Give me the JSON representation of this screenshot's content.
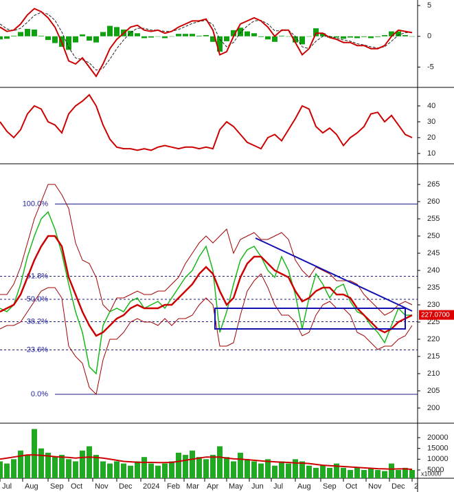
{
  "chart_data": [
    {
      "type": "line",
      "ylim": [
        -8.3,
        5.9
      ],
      "yticks": [
        5,
        0,
        -5
      ],
      "xlim": [
        0,
        60.8
      ],
      "series": [
        {
          "mark": "bar",
          "color": "#11a011",
          "values": [
            -0.5,
            -0.4,
            0.1,
            0.7,
            1.2,
            1.1,
            0.1,
            -0.6,
            -1.1,
            -1.7,
            -2.2,
            -1.0,
            0.3,
            -0.7,
            -1.0,
            0.7,
            1.7,
            1.5,
            1.1,
            0.9,
            0.5,
            -0.3,
            -0.2,
            0,
            -0.3,
            0,
            0.4,
            0.4,
            0.4,
            0.1,
            0.2,
            -0.9,
            -2.5,
            -0.8,
            1.0,
            1.4,
            0.8,
            0.5,
            -0.1,
            -0.5,
            -0.9,
            0.1,
            0,
            -1.0,
            -1.3,
            0,
            1.3,
            0.5,
            -0.2,
            -0.2,
            -0.4,
            -0.2,
            -0.3,
            -0.1,
            -0.3,
            -0.1,
            0.2,
            0.8,
            0.8,
            0.2,
            0
          ]
        },
        {
          "mark": "line",
          "color": "#222222",
          "dash": true,
          "values": [
            2.0,
            1.2,
            0.9,
            1.3,
            2.3,
            3.4,
            3.9,
            3.6,
            2.6,
            0.7,
            -1.8,
            -3.5,
            -3.8,
            -4.3,
            -5.5,
            -5.2,
            -3.7,
            -2.0,
            -0.6,
            0.6,
            1.3,
            1.3,
            1.0,
            1.0,
            0.8,
            0.8,
            1.1,
            1.6,
            2.1,
            2.4,
            2.6,
            1.9,
            -0.5,
            -1.7,
            -1.0,
            0.6,
            1.7,
            2.5,
            2.6,
            2.0,
            0.9,
            0.9,
            1.0,
            0.0,
            -1.7,
            -2.0,
            -0.8,
            0.0,
            0.0,
            -0.3,
            -0.6,
            -0.8,
            -1.2,
            -1.4,
            -1.7,
            -1.9,
            -1.7,
            -0.8,
            0.2,
            0.6,
            0.6
          ]
        },
        {
          "mark": "line",
          "color": "#cc0000",
          "width": 2,
          "values": [
            1.5,
            0.8,
            1.0,
            2.0,
            3.5,
            4.5,
            4.0,
            3.0,
            1.5,
            -1.0,
            -4.0,
            -4.5,
            -3.5,
            -5.0,
            -6.5,
            -4.5,
            -2.0,
            -0.5,
            0.5,
            1.5,
            1.8,
            1.0,
            0.8,
            1.0,
            0.5,
            0.8,
            1.5,
            2.0,
            2.5,
            2.5,
            2.8,
            1.0,
            -3.0,
            -2.5,
            0.0,
            2.0,
            2.5,
            3.0,
            2.5,
            1.5,
            0.0,
            1.0,
            1.0,
            -1.0,
            -3.0,
            -2.0,
            0.5,
            0.5,
            -0.2,
            -0.5,
            -1.0,
            -1.0,
            -1.5,
            -1.5,
            -2.0,
            -2.0,
            -1.5,
            0.0,
            1.0,
            0.8,
            0.6
          ]
        }
      ]
    },
    {
      "type": "line",
      "ylim": [
        3.5,
        51.7
      ],
      "yticks": [
        40,
        30,
        20,
        10
      ],
      "xlim": [
        0,
        60.8
      ],
      "series": [
        {
          "mark": "line",
          "color": "#cc0000",
          "width": 2,
          "values": [
            30,
            24,
            20,
            25,
            35,
            40,
            38,
            30,
            28,
            23,
            35,
            40,
            43,
            47,
            40,
            28,
            19,
            14,
            13,
            13,
            12,
            13,
            12,
            14,
            15,
            14,
            13,
            14,
            14,
            13,
            14,
            13,
            25,
            30,
            27,
            22,
            17,
            15,
            13,
            20,
            22,
            18,
            25,
            32,
            40,
            38,
            27,
            23,
            26,
            22,
            15,
            20,
            23,
            27,
            35,
            36,
            30,
            34,
            28,
            22,
            20
          ]
        }
      ]
    },
    {
      "type": "line",
      "ylim": [
        195.6,
        271
      ],
      "yticks": [
        265,
        260,
        255,
        250,
        245,
        240,
        235,
        230,
        225,
        220,
        215,
        210,
        205,
        200
      ],
      "xlim": [
        0,
        60.8
      ],
      "series": [
        {
          "mark": "line",
          "color": "#a00000",
          "width": 1,
          "values": [
            233,
            233,
            236,
            241,
            248,
            255,
            260,
            265,
            265,
            262,
            258,
            248,
            243,
            242,
            238,
            230,
            228,
            232,
            232,
            233,
            234,
            233,
            233,
            234,
            234,
            236,
            238,
            242,
            245,
            248,
            250,
            248,
            250,
            252,
            245,
            249,
            250,
            251,
            249,
            249,
            250,
            251,
            249,
            243,
            240,
            238,
            241,
            240,
            239,
            237,
            237,
            237,
            236,
            233,
            231,
            229,
            227,
            228,
            230,
            231,
            230
          ]
        },
        {
          "mark": "line",
          "color": "#a00000",
          "width": 1,
          "values": [
            223,
            224,
            224,
            225,
            228,
            231,
            234,
            235,
            235,
            232,
            218,
            215,
            213,
            206,
            204,
            214,
            220,
            220,
            222,
            225,
            226,
            225,
            225,
            224,
            226,
            224,
            226,
            226,
            227,
            230,
            232,
            230,
            218,
            218,
            219,
            227,
            234,
            237,
            239,
            235,
            230,
            227,
            227,
            225,
            221,
            222,
            227,
            230,
            231,
            229,
            229,
            227,
            222,
            221,
            219,
            217,
            218,
            218,
            220,
            221,
            224
          ]
        },
        {
          "mark": "line",
          "color": "#18b818",
          "width": 1.5,
          "values": [
            229,
            228,
            230,
            236,
            244,
            250,
            255,
            257,
            252,
            245,
            236,
            228,
            222,
            212,
            210,
            224,
            228,
            229,
            228,
            231,
            232,
            229,
            230,
            231,
            229,
            232,
            235,
            238,
            240,
            244,
            247,
            240,
            222,
            228,
            236,
            243,
            246,
            247,
            244,
            240,
            238,
            244,
            240,
            233,
            223,
            232,
            239,
            236,
            232,
            235,
            236,
            231,
            228,
            227,
            224,
            222,
            219,
            224,
            229,
            227,
            227
          ]
        },
        {
          "mark": "line",
          "color": "#cc0000",
          "width": 2.5,
          "values": [
            228,
            229,
            230,
            233,
            238,
            243,
            247,
            250,
            250,
            247,
            238,
            233,
            228,
            224,
            221,
            222,
            224,
            226,
            227,
            229,
            230,
            229,
            229,
            229,
            230,
            230,
            232,
            234,
            236,
            239,
            241,
            239,
            234,
            230,
            232,
            238,
            242,
            244,
            244,
            242,
            240,
            239,
            238,
            234,
            231,
            232,
            234,
            235,
            235,
            233,
            233,
            232,
            229,
            227,
            225,
            223,
            222,
            223,
            225,
            226,
            227
          ]
        }
      ],
      "fib_levels": [
        {
          "label": "100.0%",
          "value": 259.3,
          "solid": true
        },
        {
          "label": "61.8%",
          "value": 238.3
        },
        {
          "label": "50.0%",
          "value": 231.6
        },
        {
          "label": "38.2%",
          "value": 225.1
        },
        {
          "label": "23.6%",
          "value": 216.9
        },
        {
          "label": "0.0%",
          "value": 204,
          "solid": true
        }
      ],
      "trendline": {
        "color": "#1010b0",
        "x": [
          37.2,
          60
        ],
        "y": [
          249.4,
          228.2
        ]
      },
      "box": {
        "color": "#1010b0",
        "x": [
          31.3,
          59
        ],
        "y": [
          223,
          229
        ]
      },
      "last_price": {
        "value": 227.07,
        "label": "227.0700",
        "color": "#dd0000"
      }
    },
    {
      "type": "bar",
      "ylim": [
        1170,
        26700
      ],
      "yticks": [
        20000,
        15000,
        10000,
        5000
      ],
      "xlim": [
        0,
        60.8
      ],
      "unit_label": "x10000",
      "xticks": [
        {
          "value": 0,
          "label": "Jul"
        },
        {
          "value": 3.3,
          "label": "Aug"
        },
        {
          "value": 7,
          "label": "Sep"
        },
        {
          "value": 10,
          "label": "Oct"
        },
        {
          "value": 13.5,
          "label": "Nov"
        },
        {
          "value": 17,
          "label": "Dec"
        },
        {
          "value": 20.5,
          "label": "2024"
        },
        {
          "value": 24,
          "label": "Feb"
        },
        {
          "value": 26.8,
          "label": "Mar"
        },
        {
          "value": 29.8,
          "label": "Apr"
        },
        {
          "value": 33,
          "label": "May"
        },
        {
          "value": 36.3,
          "label": "Jun"
        },
        {
          "value": 39.5,
          "label": "Jul"
        },
        {
          "value": 43,
          "label": "Aug"
        },
        {
          "value": 46.7,
          "label": "Sep"
        },
        {
          "value": 50,
          "label": "Oct"
        },
        {
          "value": 53.3,
          "label": "Nov"
        },
        {
          "value": 56.7,
          "label": "Dec"
        },
        {
          "value": 60,
          "label": "2"
        }
      ],
      "series": [
        {
          "mark": "bar",
          "color": "#22a822",
          "values": [
            9000,
            8000,
            10000,
            14000,
            12000,
            24000,
            15000,
            13000,
            11000,
            12000,
            10000,
            9000,
            14000,
            16000,
            12000,
            9000,
            8000,
            9000,
            8000,
            7000,
            9000,
            11000,
            8000,
            7000,
            8000,
            9000,
            13000,
            12000,
            14000,
            11000,
            10000,
            12000,
            16000,
            11000,
            9000,
            13000,
            10000,
            9000,
            8000,
            10000,
            7000,
            9000,
            8000,
            10000,
            9000,
            7000,
            6000,
            7000,
            6000,
            8000,
            6000,
            5000,
            6000,
            5000,
            6000,
            5000,
            4500,
            8000,
            5000,
            6000,
            5000
          ]
        },
        {
          "mark": "line",
          "color": "#cc0000",
          "width": 2,
          "values": [
            10000,
            10500,
            11000,
            11500,
            12000,
            12000,
            11800,
            11500,
            11200,
            11000,
            10800,
            10500,
            10800,
            11000,
            10800,
            10500,
            10000,
            9500,
            9000,
            8800,
            8600,
            8500,
            8500,
            8400,
            8400,
            8500,
            9000,
            9500,
            10000,
            10500,
            11000,
            11000,
            11000,
            10500,
            10200,
            10000,
            9800,
            9500,
            9200,
            9000,
            8800,
            8600,
            8500,
            8300,
            8200,
            8000,
            7600,
            7200,
            7000,
            6800,
            6600,
            6400,
            6200,
            6000,
            5800,
            5600,
            5500,
            5400,
            5500,
            5500,
            5300
          ]
        }
      ]
    }
  ]
}
